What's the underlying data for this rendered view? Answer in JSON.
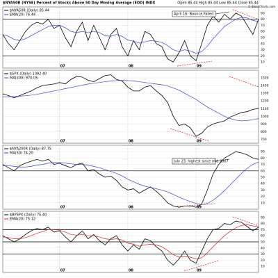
{
  "chart_data": [
    {
      "type": "line",
      "title": "$NYA50R (NYSE) Percent of Stocks Above 50 Day Moving Average (EOD) INDX",
      "subtitle": "Open 85.44  High 85.44  Low 85.44  Close 85.44",
      "annotation": "April 16: Bounce Failed",
      "categories": [
        null,
        null,
        null,
        null,
        null,
        null,
        null,
        null,
        null,
        null,
        "07",
        null,
        null,
        null,
        null,
        null,
        null,
        null,
        null,
        null,
        null,
        null,
        "08",
        null,
        null,
        null,
        null,
        null,
        null,
        null,
        null,
        null,
        null,
        null,
        "09",
        null,
        null,
        null,
        null,
        null,
        null,
        null,
        null,
        null,
        null,
        null
      ],
      "series": [
        {
          "name": "$NYA50R (Daily) 85.44",
          "color": "#000000",
          "values": [
            55,
            40,
            30,
            45,
            60,
            70,
            75,
            72,
            80,
            65,
            70,
            50,
            35,
            60,
            75,
            45,
            70,
            50,
            30,
            55,
            65,
            35,
            20,
            45,
            30,
            60,
            55,
            40,
            35,
            15,
            10,
            25,
            45,
            20,
            12,
            40,
            70,
            85,
            75,
            88,
            80,
            90,
            85,
            70,
            55,
            80
          ]
        },
        {
          "name": "EMA(20) 76.44",
          "color": "#3344cc",
          "values": [
            55,
            52,
            47,
            45,
            48,
            53,
            58,
            63,
            68,
            70,
            70,
            66,
            60,
            58,
            60,
            58,
            60,
            58,
            53,
            52,
            55,
            52,
            46,
            44,
            41,
            43,
            45,
            44,
            42,
            37,
            30,
            27,
            30,
            28,
            24,
            27,
            36,
            48,
            58,
            68,
            74,
            80,
            83,
            82,
            78,
            76
          ]
        }
      ],
      "ylim": [
        0,
        100
      ],
      "yticks": [
        10,
        20,
        30,
        40,
        50,
        60,
        70,
        80,
        90
      ],
      "reference_lines": [
        80,
        20
      ],
      "grid": true
    },
    {
      "type": "line",
      "categories": [
        null,
        null,
        null,
        null,
        null,
        null,
        null,
        null,
        null,
        null,
        "07",
        null,
        null,
        null,
        null,
        null,
        null,
        null,
        null,
        null,
        null,
        null,
        "08",
        null,
        null,
        null,
        null,
        null,
        null,
        null,
        null,
        null,
        null,
        null,
        "09",
        null,
        null,
        null,
        null,
        null,
        null,
        null,
        null,
        null,
        null,
        null
      ],
      "series": [
        {
          "name": "$SPX (Daily) 1092.40",
          "color": "#000000",
          "values": [
            1290,
            1270,
            1240,
            1270,
            1300,
            1330,
            1370,
            1400,
            1410,
            1420,
            1440,
            1420,
            1480,
            1520,
            1510,
            1470,
            1450,
            1490,
            1530,
            1540,
            1480,
            1460,
            1380,
            1330,
            1330,
            1380,
            1400,
            1330,
            1270,
            1180,
            1000,
            880,
            900,
            850,
            740,
            780,
            860,
            900,
            920,
            940,
            990,
            1020,
            1050,
            1060,
            1090,
            1100
          ]
        },
        {
          "name": "MA(200) 970.05",
          "color": "#3344cc",
          "values": [
            1250,
            1255,
            1258,
            1262,
            1268,
            1275,
            1285,
            1300,
            1315,
            1330,
            1345,
            1360,
            1375,
            1390,
            1405,
            1420,
            1430,
            1440,
            1450,
            1460,
            1465,
            1468,
            1465,
            1460,
            1450,
            1440,
            1430,
            1420,
            1410,
            1395,
            1370,
            1340,
            1300,
            1260,
            1220,
            1170,
            1120,
            1080,
            1040,
            1000,
            970,
            950,
            940,
            945,
            955,
            970
          ]
        }
      ],
      "ylim": [
        650,
        1600
      ],
      "yticks": [
        700,
        800,
        900,
        1000,
        1100,
        1200,
        1300,
        1400,
        1500
      ],
      "reference_lines": [],
      "grid": true
    },
    {
      "type": "line",
      "annotation": "July 23: highest since mid 2007",
      "categories": [
        null,
        null,
        null,
        null,
        null,
        null,
        null,
        null,
        null,
        null,
        "07",
        null,
        null,
        null,
        null,
        null,
        null,
        null,
        null,
        null,
        null,
        null,
        "08",
        null,
        null,
        null,
        null,
        null,
        null,
        null,
        null,
        null,
        null,
        null,
        "09",
        null,
        null,
        null,
        null,
        null,
        null,
        null,
        null,
        null,
        null,
        null
      ],
      "series": [
        {
          "name": "$NYA200R (Daily) 87.75",
          "color": "#000000",
          "values": [
            70,
            65,
            60,
            68,
            72,
            75,
            78,
            75,
            78,
            70,
            72,
            68,
            65,
            70,
            72,
            60,
            62,
            55,
            50,
            52,
            45,
            35,
            30,
            32,
            25,
            30,
            35,
            28,
            20,
            10,
            5,
            3,
            5,
            5,
            3,
            8,
            30,
            55,
            70,
            80,
            85,
            90,
            88,
            85,
            80,
            78
          ]
        },
        {
          "name": "MA(50) 74.20",
          "color": "#3344cc",
          "values": [
            68,
            68,
            67,
            66,
            66,
            67,
            69,
            70,
            72,
            73,
            73,
            72,
            71,
            70,
            70,
            69,
            67,
            65,
            62,
            59,
            56,
            52,
            47,
            43,
            39,
            36,
            34,
            32,
            30,
            27,
            23,
            19,
            15,
            12,
            9,
            7,
            9,
            14,
            21,
            29,
            38,
            47,
            56,
            64,
            70,
            74
          ]
        }
      ],
      "ylim": [
        0,
        100
      ],
      "yticks": [
        10,
        20,
        30,
        40,
        50,
        60,
        70,
        80,
        90
      ],
      "reference_lines": [
        60
      ],
      "grid": true
    },
    {
      "type": "line",
      "categories": [
        null,
        null,
        null,
        null,
        null,
        null,
        null,
        null,
        null,
        null,
        "07",
        null,
        null,
        null,
        null,
        null,
        null,
        null,
        null,
        null,
        null,
        null,
        "08",
        null,
        null,
        null,
        null,
        null,
        null,
        null,
        null,
        null,
        null,
        null,
        "09",
        null,
        null,
        null,
        null,
        null,
        null,
        null,
        null,
        null,
        null,
        null
      ],
      "series": [
        {
          "name": "$BPSPX (Daily) 75.40",
          "color": "#000000",
          "values": [
            60,
            55,
            50,
            55,
            62,
            68,
            72,
            70,
            74,
            66,
            68,
            58,
            50,
            60,
            68,
            55,
            62,
            52,
            45,
            55,
            60,
            45,
            35,
            45,
            38,
            55,
            52,
            42,
            35,
            20,
            12,
            22,
            35,
            20,
            15,
            35,
            55,
            70,
            72,
            80,
            78,
            84,
            82,
            75,
            68,
            74
          ]
        },
        {
          "name": "EMA(20) 75.12",
          "color": "#cc2222",
          "values": [
            58,
            57,
            55,
            55,
            57,
            60,
            64,
            67,
            70,
            70,
            69,
            66,
            62,
            61,
            62,
            60,
            60,
            58,
            55,
            54,
            55,
            53,
            48,
            46,
            43,
            45,
            46,
            45,
            42,
            36,
            29,
            25,
            26,
            25,
            22,
            24,
            32,
            42,
            51,
            60,
            67,
            73,
            77,
            78,
            76,
            75
          ]
        }
      ],
      "ylim": [
        0,
        100
      ],
      "yticks": [
        10,
        20,
        30,
        40,
        50,
        60,
        70,
        80,
        90
      ],
      "reference_lines": [
        70,
        50,
        30
      ],
      "grid": true
    }
  ],
  "credit": "© StockCharts.com"
}
